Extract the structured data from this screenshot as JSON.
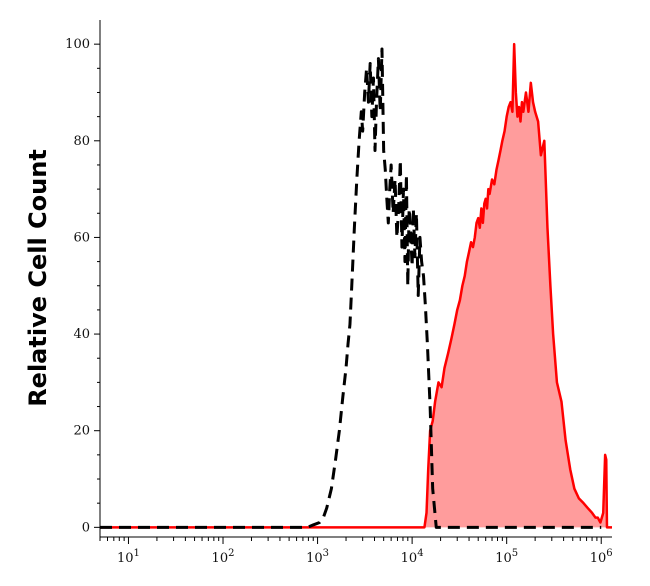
{
  "chart_data": {
    "type": "area",
    "title": "",
    "xlabel": "",
    "ylabel": "Relative Cell Count",
    "x_scale": "log",
    "xlim": [
      5,
      1300000
    ],
    "ylim": [
      -2,
      105
    ],
    "x_ticks": [
      {
        "value": 10,
        "base": "10",
        "exp": "1"
      },
      {
        "value": 100,
        "base": "10",
        "exp": "2"
      },
      {
        "value": 1000,
        "base": "10",
        "exp": "3"
      },
      {
        "value": 10000,
        "base": "10",
        "exp": "4"
      },
      {
        "value": 100000,
        "base": "10",
        "exp": "5"
      },
      {
        "value": 1000000,
        "base": "10",
        "exp": "6"
      }
    ],
    "y_ticks": [
      {
        "value": 0,
        "label": "0"
      },
      {
        "value": 20,
        "label": "20"
      },
      {
        "value": 40,
        "label": "40"
      },
      {
        "value": 60,
        "label": "60"
      },
      {
        "value": 80,
        "label": "80"
      },
      {
        "value": 100,
        "label": "100"
      }
    ],
    "grid": false,
    "legend": "none",
    "series": [
      {
        "style": "dashed-black-line",
        "color": "#000000",
        "fill": "none",
        "points": [
          [
            5,
            0
          ],
          [
            500,
            0
          ],
          [
            620,
            0
          ],
          [
            780,
            0
          ],
          [
            900,
            0.5
          ],
          [
            1050,
            1
          ],
          [
            1150,
            2
          ],
          [
            1250,
            4
          ],
          [
            1400,
            8
          ],
          [
            1550,
            14
          ],
          [
            1700,
            20
          ],
          [
            1850,
            27
          ],
          [
            2000,
            33
          ],
          [
            2100,
            38
          ],
          [
            2200,
            42
          ],
          [
            2300,
            50
          ],
          [
            2450,
            62
          ],
          [
            2600,
            72
          ],
          [
            2750,
            80
          ],
          [
            2900,
            86
          ],
          [
            3000,
            82
          ],
          [
            3150,
            90
          ],
          [
            3300,
            95
          ],
          [
            3450,
            88
          ],
          [
            3600,
            96
          ],
          [
            3750,
            85
          ],
          [
            3900,
            93
          ],
          [
            4050,
            78
          ],
          [
            4200,
            88
          ],
          [
            4400,
            97
          ],
          [
            4600,
            86
          ],
          [
            4800,
            99
          ],
          [
            5000,
            78
          ],
          [
            5200,
            74
          ],
          [
            5400,
            68
          ],
          [
            5600,
            63
          ],
          [
            5800,
            70
          ],
          [
            6000,
            75
          ],
          [
            6300,
            65
          ],
          [
            6600,
            72
          ],
          [
            6900,
            60
          ],
          [
            7200,
            66
          ],
          [
            7500,
            76
          ],
          [
            7800,
            58
          ],
          [
            8100,
            70
          ],
          [
            8400,
            55
          ],
          [
            8700,
            73
          ],
          [
            9000,
            50
          ],
          [
            9300,
            66
          ],
          [
            9600,
            62
          ],
          [
            10000,
            54
          ],
          [
            10300,
            66
          ],
          [
            10700,
            56
          ],
          [
            11100,
            65
          ],
          [
            11600,
            48
          ],
          [
            12100,
            60
          ],
          [
            12600,
            55
          ],
          [
            13200,
            52
          ],
          [
            13800,
            46
          ],
          [
            14500,
            38
          ],
          [
            15500,
            25
          ],
          [
            16500,
            8
          ],
          [
            18000,
            0
          ],
          [
            30000,
            0
          ],
          [
            1000000,
            0
          ]
        ]
      },
      {
        "style": "red-filled-area",
        "color": "#ff0000",
        "fill": "#ff9c9c",
        "points": [
          [
            5,
            0
          ],
          [
            10000,
            0
          ],
          [
            13500,
            0
          ],
          [
            14200,
            3
          ],
          [
            14800,
            12
          ],
          [
            15500,
            20
          ],
          [
            16500,
            22
          ],
          [
            17500,
            26
          ],
          [
            19000,
            30
          ],
          [
            20500,
            29
          ],
          [
            22000,
            33
          ],
          [
            24000,
            36
          ],
          [
            26000,
            39
          ],
          [
            28000,
            42
          ],
          [
            30000,
            45
          ],
          [
            32000,
            47
          ],
          [
            34000,
            50
          ],
          [
            36000,
            52
          ],
          [
            38000,
            55
          ],
          [
            40000,
            57
          ],
          [
            42000,
            59
          ],
          [
            44000,
            58
          ],
          [
            46000,
            60
          ],
          [
            48000,
            63
          ],
          [
            50000,
            64
          ],
          [
            52000,
            62
          ],
          [
            54000,
            66
          ],
          [
            56000,
            63
          ],
          [
            58000,
            67
          ],
          [
            60000,
            68
          ],
          [
            62000,
            66
          ],
          [
            64000,
            70
          ],
          [
            66000,
            69
          ],
          [
            70000,
            72
          ],
          [
            74000,
            71
          ],
          [
            78000,
            74
          ],
          [
            82000,
            76
          ],
          [
            86000,
            78
          ],
          [
            90000,
            80
          ],
          [
            95000,
            82
          ],
          [
            100000,
            85
          ],
          [
            105000,
            87
          ],
          [
            110000,
            88
          ],
          [
            115000,
            86
          ],
          [
            120000,
            100
          ],
          [
            125000,
            90
          ],
          [
            130000,
            85
          ],
          [
            135000,
            87
          ],
          [
            140000,
            84
          ],
          [
            145000,
            88
          ],
          [
            150000,
            86
          ],
          [
            160000,
            90
          ],
          [
            170000,
            86
          ],
          [
            180000,
            92
          ],
          [
            190000,
            88
          ],
          [
            200000,
            86
          ],
          [
            215000,
            84
          ],
          [
            230000,
            77
          ],
          [
            250000,
            80
          ],
          [
            270000,
            62
          ],
          [
            290000,
            50
          ],
          [
            310000,
            40
          ],
          [
            340000,
            30
          ],
          [
            380000,
            26
          ],
          [
            420000,
            18
          ],
          [
            470000,
            12
          ],
          [
            520000,
            8
          ],
          [
            580000,
            6
          ],
          [
            650000,
            5
          ],
          [
            720000,
            4
          ],
          [
            800000,
            3
          ],
          [
            870000,
            2
          ],
          [
            920000,
            2
          ],
          [
            980000,
            1
          ],
          [
            1050000,
            3
          ],
          [
            1100000,
            15
          ],
          [
            1130000,
            14
          ],
          [
            1150000,
            0
          ],
          [
            1300000,
            0
          ]
        ]
      }
    ]
  }
}
